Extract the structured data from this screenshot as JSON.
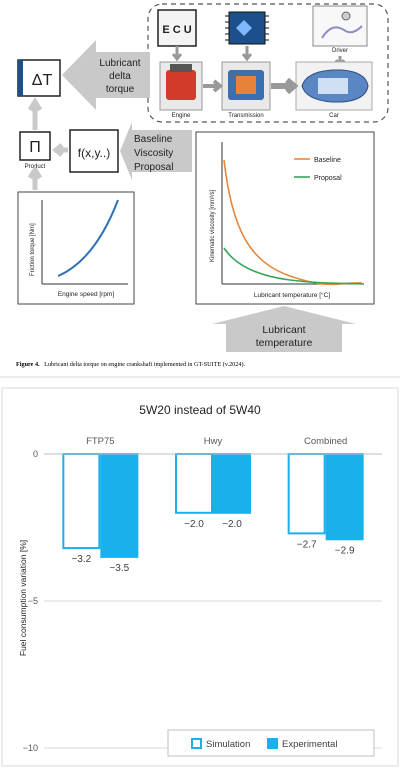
{
  "figure4": {
    "ecu_label": "E C U",
    "engine_label": "Engine",
    "transmission_label": "Transmission",
    "driver_label": "Driver",
    "car_label": "Car",
    "delta_t_label": "ΔT",
    "lubricant_delta_torque": [
      "Lubricant",
      "delta",
      "torque"
    ],
    "product_label": "Product",
    "function_label": "f(x,y..)",
    "inputs": [
      "Baseline",
      "Viscosity",
      "Proposal"
    ],
    "viscosity_plot": {
      "ylabel": "Kinematic viscosity [mm²/s]",
      "xlabel": "Lubricant temperature [°C]",
      "legend": [
        {
          "name": "Baseline",
          "color": "#e8873a"
        },
        {
          "name": "Proposal",
          "color": "#3aa55a"
        }
      ]
    },
    "friction_plot": {
      "ylabel": "Friction torque [Nm]",
      "xlabel": "Engine speed [rpm]",
      "color": "#2f6fb5"
    },
    "lubricant_temperature": [
      "Lubricant",
      "temperature"
    ],
    "caption_bold": "Figure 4.",
    "caption_text": "Lubricant delta torque on engine crankshaft implemented in GT-SUITE (v.2024)."
  },
  "chart_data": {
    "type": "bar",
    "title": "5W20 instead of 5W40",
    "ylabel": "Fuel consumption variation [%]",
    "categories": [
      "FTP75",
      "Hwy",
      "Combined"
    ],
    "ylim": [
      -10,
      0
    ],
    "yticks": [
      0,
      -5,
      -10
    ],
    "grid": true,
    "legend_position": "bottom",
    "series": [
      {
        "name": "Simulation",
        "values": [
          -3.2,
          -2.0,
          -2.7
        ],
        "labels": [
          "−3.2",
          "−2.0",
          "−2.7"
        ],
        "color": "#1ab0ec",
        "fill": "#ffffff"
      },
      {
        "name": "Experimental",
        "values": [
          -3.5,
          -2.0,
          -2.9
        ],
        "labels": [
          "−3.5",
          "−2.0",
          "−2.9"
        ],
        "color": "#1ab0ec",
        "fill": "#1ab0ec"
      }
    ],
    "tick_labels": [
      "0",
      "−5",
      "−10"
    ]
  }
}
